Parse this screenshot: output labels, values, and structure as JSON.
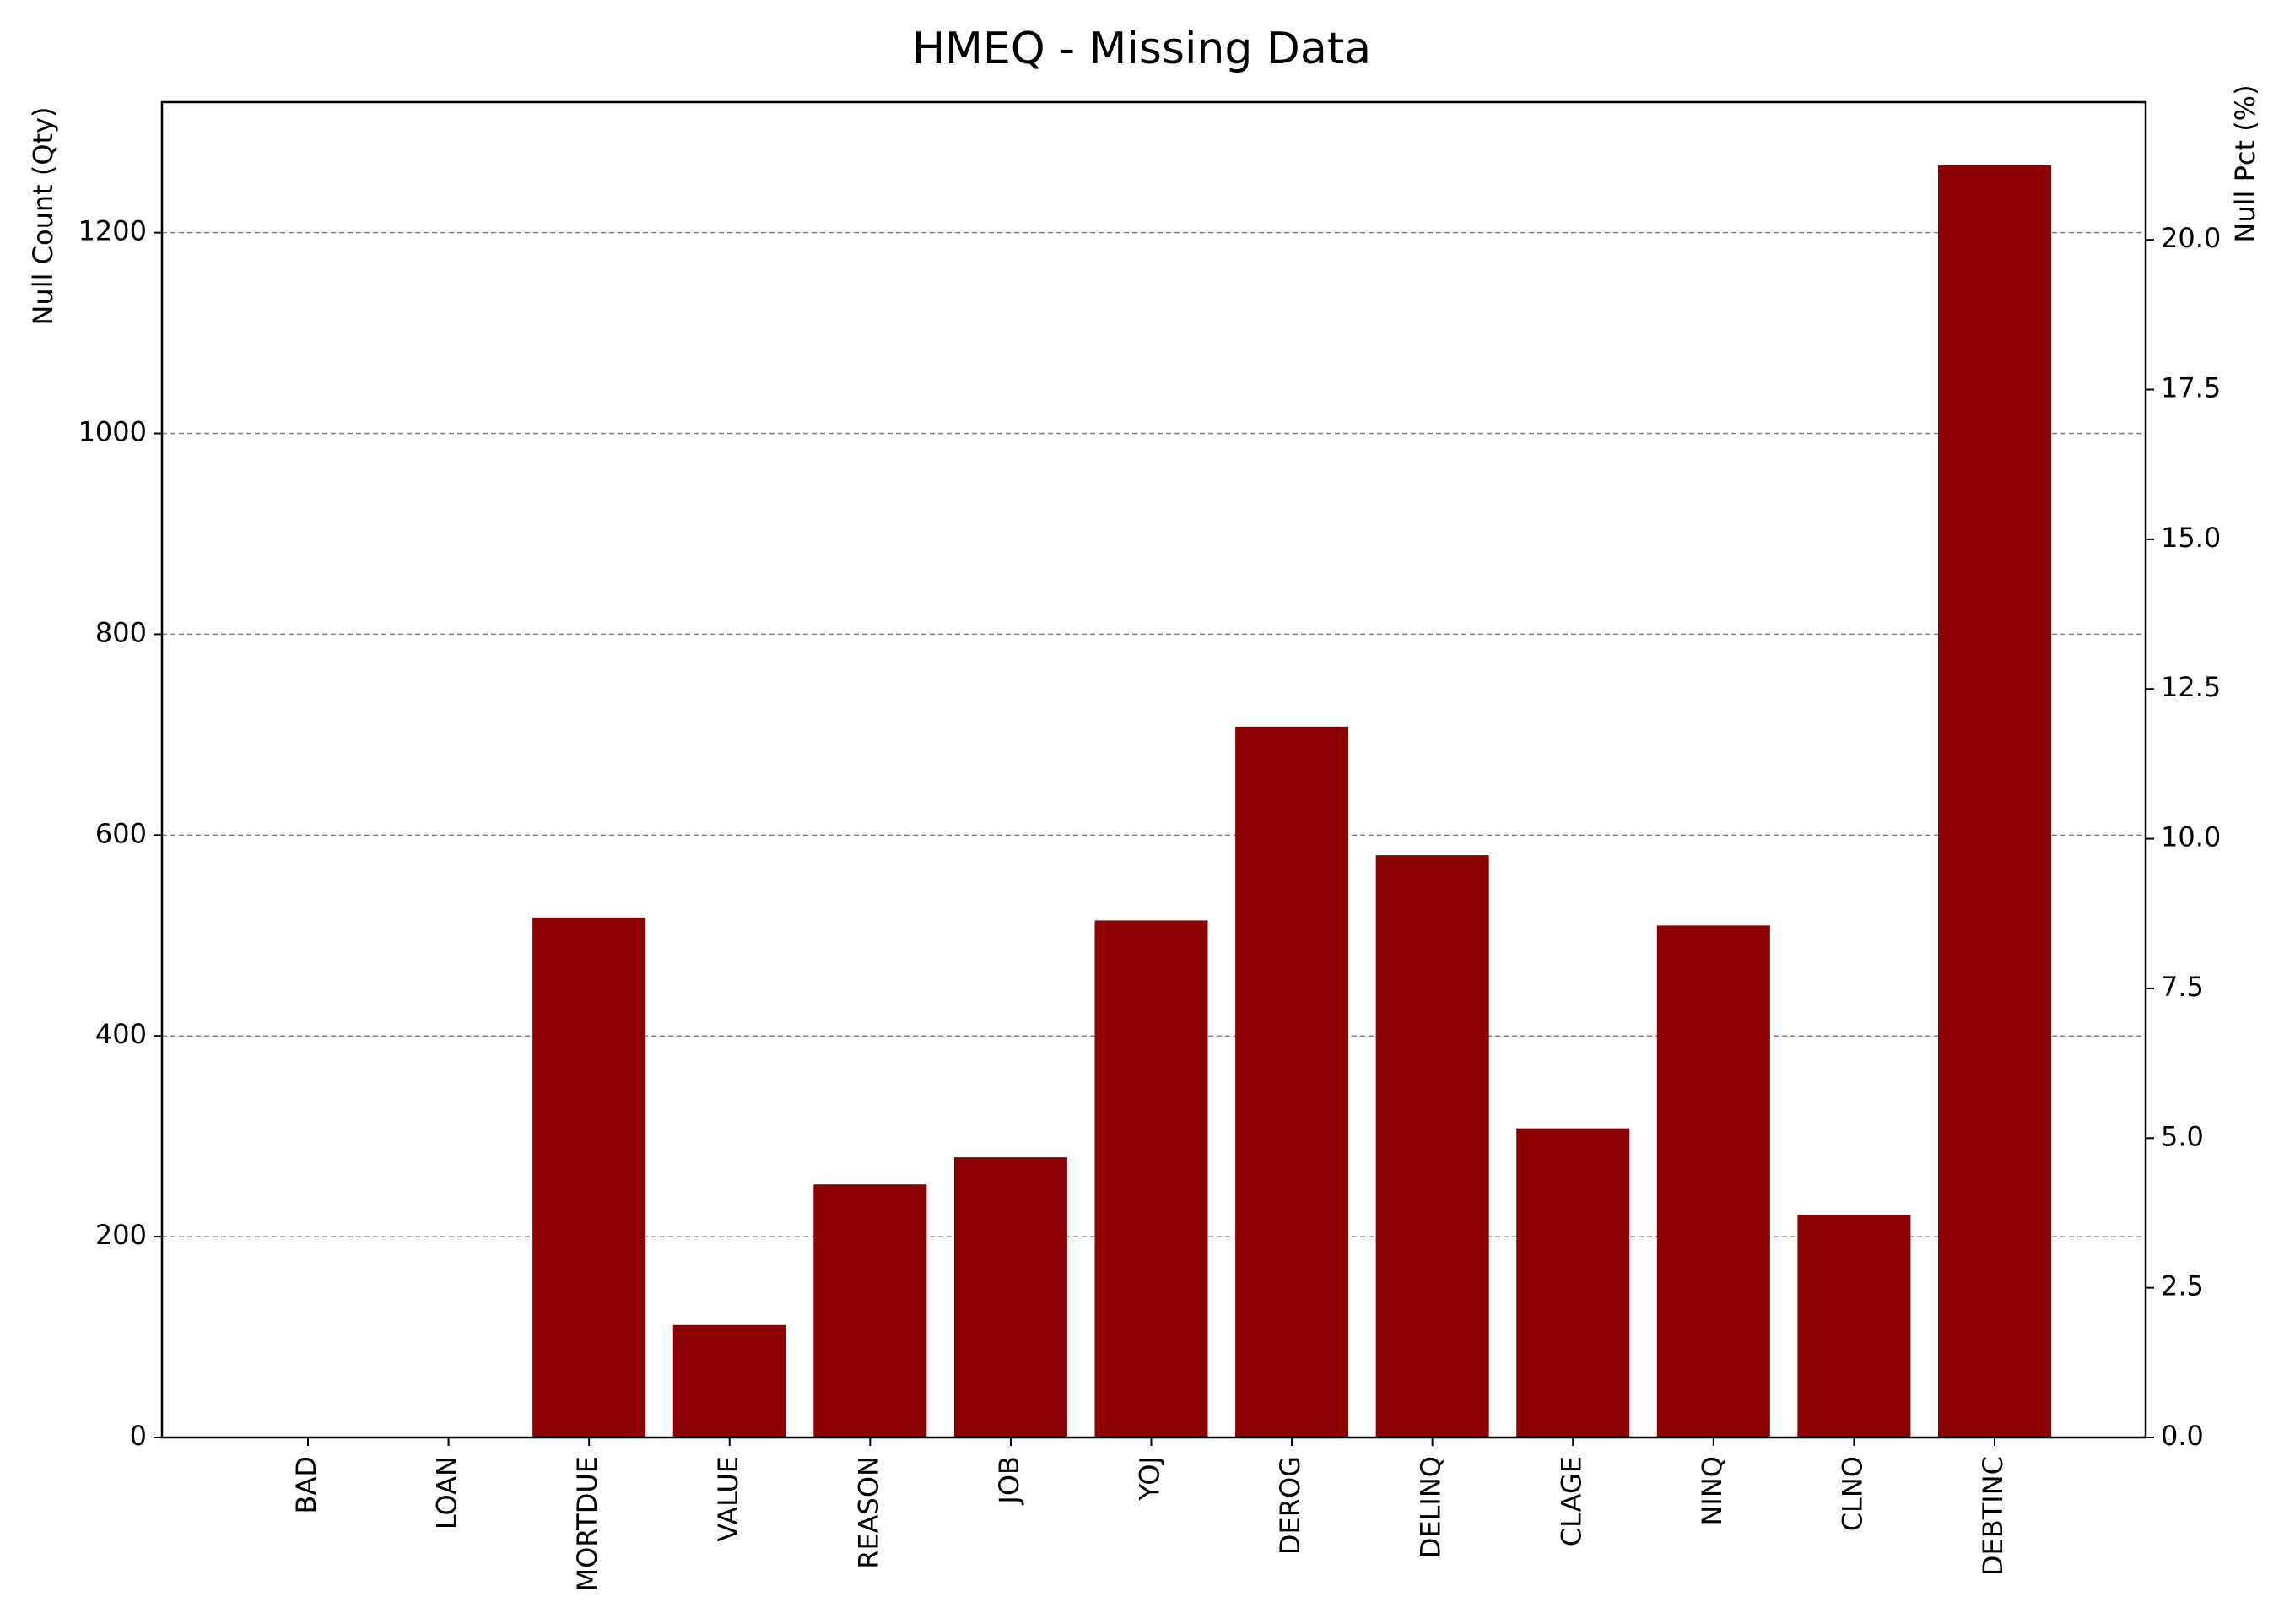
{
  "chart_data": {
    "type": "bar",
    "title": "HMEQ - Missing Data",
    "ylabel": "Null Count (Qty)",
    "ylabel_right": "Null Pct (%)",
    "xlabel": "",
    "categories": [
      "BAD",
      "LOAN",
      "MORTDUE",
      "VALUE",
      "REASON",
      "JOB",
      "YOJ",
      "DEROG",
      "DELINQ",
      "CLAGE",
      "NINQ",
      "CLNO",
      "DEBTINC"
    ],
    "values": [
      0,
      0,
      518,
      112,
      252,
      279,
      515,
      708,
      580,
      308,
      510,
      222,
      1267
    ],
    "ylim": [
      0,
      1330
    ],
    "ylim_right": [
      0,
      22.3
    ],
    "yticks": [
      0,
      200,
      400,
      600,
      800,
      1000,
      1200
    ],
    "yticks_right": [
      0.0,
      2.5,
      5.0,
      7.5,
      10.0,
      12.5,
      15.0,
      17.5,
      20.0
    ],
    "grid": "y-dashed",
    "bar_color": "#8b0000"
  }
}
